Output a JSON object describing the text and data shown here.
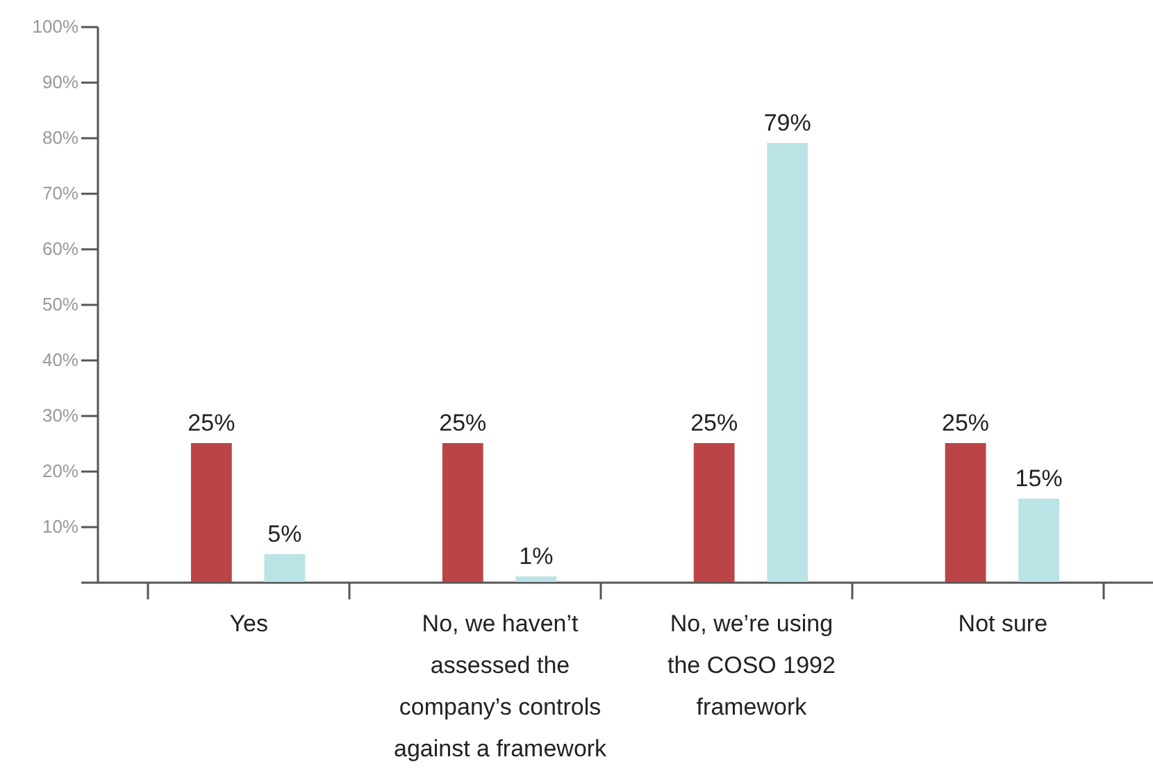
{
  "chart_data": {
    "type": "bar",
    "categories": [
      "Yes",
      "No, we haven’t\nassessed the\ncompany’s controls\nagainst a framework",
      "No, we’re using\nthe COSO 1992\nframework",
      "Not sure"
    ],
    "series": [
      {
        "color": "#bb4446",
        "values": [
          25,
          25,
          25,
          25
        ],
        "value_labels": [
          "25%",
          "25%",
          "25%",
          "25%"
        ]
      },
      {
        "color": "#bae3e6",
        "values": [
          5,
          1,
          79,
          15
        ],
        "value_labels": [
          "5%",
          "1%",
          "79%",
          "15%"
        ]
      }
    ],
    "ylim": [
      0,
      100
    ],
    "yticks": [
      {
        "value": 0,
        "label": null
      },
      {
        "value": 10,
        "label": "10%"
      },
      {
        "value": 20,
        "label": "20%"
      },
      {
        "value": 30,
        "label": "30%"
      },
      {
        "value": 40,
        "label": "40%"
      },
      {
        "value": 50,
        "label": "50%"
      },
      {
        "value": 60,
        "label": "60%"
      },
      {
        "value": 70,
        "label": "70%"
      },
      {
        "value": 80,
        "label": "80%"
      },
      {
        "value": 90,
        "label": "90%"
      },
      {
        "value": 100,
        "label": "100%"
      }
    ],
    "grid": false,
    "legend": false
  }
}
